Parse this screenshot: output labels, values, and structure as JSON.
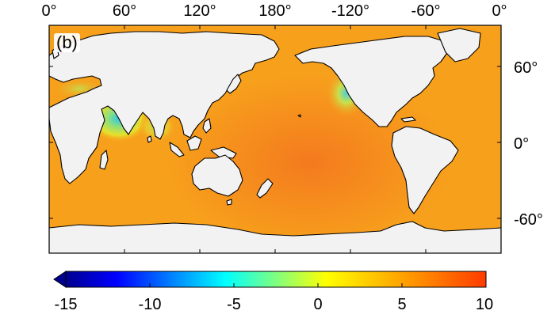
{
  "panel_label": "(b)",
  "top_axis": {
    "tick_labels": [
      "0°",
      "60°",
      "120°",
      "180°",
      "-120°",
      "-60°",
      "0°"
    ],
    "tick_lon": [
      0,
      60,
      120,
      180,
      240,
      300,
      360
    ]
  },
  "right_axis": {
    "tick_labels": [
      "60°",
      "0°",
      "-60°"
    ],
    "tick_lat": [
      60,
      0,
      -60
    ]
  },
  "colorbar": {
    "tick_labels": [
      "-15",
      "-10",
      "-5",
      "0",
      "5",
      "10"
    ],
    "range": [
      -15,
      10
    ],
    "colors": [
      "#00008f",
      "#0000ff",
      "#00ffff",
      "#ffff00",
      "#ff0000"
    ],
    "extend": "min"
  },
  "colors": {
    "ocean_base": "#f7a01c",
    "pacific_core": "#f58420",
    "land": "#f2f2f2",
    "coast": "#000000"
  }
}
